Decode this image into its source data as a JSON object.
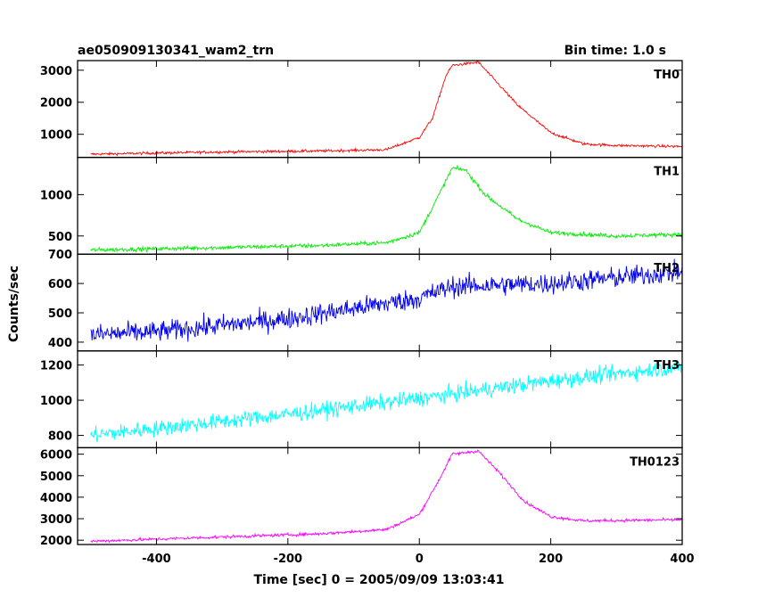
{
  "title_left": "ae050909130341_wam2_trn",
  "title_right": "Bin time: 1.0 s",
  "chart_data": {
    "type": "line",
    "xlabel": "Time [sec] 0 = 2005/09/09 13:03:41",
    "ylabel": "Counts/sec",
    "xlim": [
      -520,
      400
    ],
    "xticks": [
      -400,
      -200,
      0,
      200,
      400
    ],
    "bin_time_s": 1.0,
    "panels": [
      {
        "name": "TH0",
        "color": "#ff0000",
        "ylim": [
          280,
          3300
        ],
        "yticks": [
          1000,
          2000,
          3000
        ],
        "noise": 40,
        "profile": [
          [
            -500,
            380
          ],
          [
            -300,
            450
          ],
          [
            -150,
            480
          ],
          [
            -50,
            520
          ],
          [
            0,
            900
          ],
          [
            20,
            1500
          ],
          [
            40,
            2800
          ],
          [
            50,
            3150
          ],
          [
            90,
            3250
          ],
          [
            110,
            2800
          ],
          [
            150,
            1900
          ],
          [
            200,
            1050
          ],
          [
            250,
            700
          ],
          [
            300,
            650
          ],
          [
            400,
            620
          ]
        ]
      },
      {
        "name": "TH1",
        "color": "#00ee00",
        "ylim": [
          280,
          1450
        ],
        "yticks": [
          500,
          1000
        ],
        "noise": 25,
        "profile": [
          [
            -500,
            330
          ],
          [
            -300,
            360
          ],
          [
            -150,
            385
          ],
          [
            -50,
            420
          ],
          [
            0,
            540
          ],
          [
            30,
            1000
          ],
          [
            50,
            1320
          ],
          [
            70,
            1300
          ],
          [
            100,
            1000
          ],
          [
            150,
            700
          ],
          [
            200,
            540
          ],
          [
            300,
            500
          ],
          [
            400,
            520
          ]
        ]
      },
      {
        "name": "TH2",
        "color": "#0000ee",
        "ylim": [
          370,
          700
        ],
        "yticks": [
          400,
          500,
          600,
          700
        ],
        "noise": 35,
        "profile": [
          [
            -500,
            425
          ],
          [
            -400,
            435
          ],
          [
            -200,
            480
          ],
          [
            0,
            550
          ],
          [
            50,
            590
          ],
          [
            200,
            600
          ],
          [
            400,
            640
          ]
        ]
      },
      {
        "name": "TH3",
        "color": "#00ffff",
        "ylim": [
          730,
          1280
        ],
        "yticks": [
          800,
          1000,
          1200
        ],
        "noise": 45,
        "profile": [
          [
            -500,
            800
          ],
          [
            -400,
            840
          ],
          [
            -200,
            920
          ],
          [
            0,
            1010
          ],
          [
            200,
            1110
          ],
          [
            400,
            1190
          ]
        ]
      },
      {
        "name": "TH0123",
        "color": "#ff00ff",
        "ylim": [
          1800,
          6300
        ],
        "yticks": [
          2000,
          3000,
          4000,
          5000,
          6000
        ],
        "noise": 70,
        "profile": [
          [
            -500,
            1950
          ],
          [
            -300,
            2150
          ],
          [
            -150,
            2300
          ],
          [
            -50,
            2500
          ],
          [
            0,
            3200
          ],
          [
            30,
            4800
          ],
          [
            50,
            6000
          ],
          [
            90,
            6150
          ],
          [
            120,
            5200
          ],
          [
            160,
            3800
          ],
          [
            200,
            3100
          ],
          [
            250,
            2900
          ],
          [
            400,
            2950
          ]
        ]
      }
    ]
  }
}
